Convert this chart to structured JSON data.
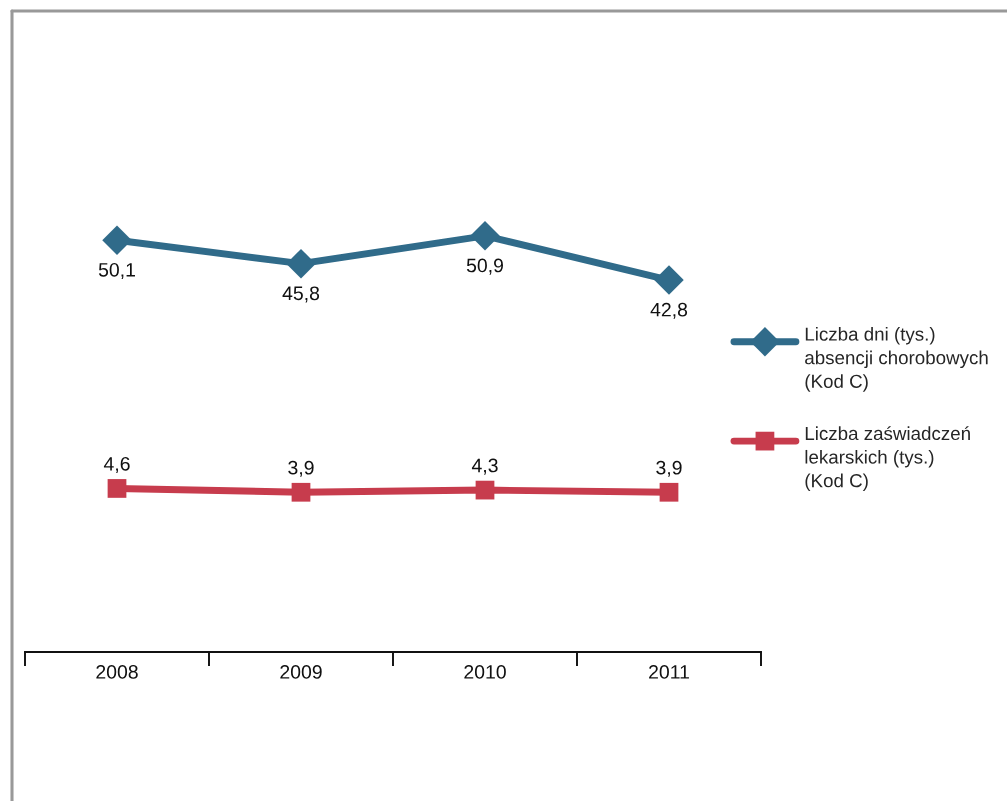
{
  "chart_data": {
    "type": "line",
    "categories": [
      "2008",
      "2009",
      "2010",
      "2011"
    ],
    "series": [
      {
        "name": "Liczba dni (tys.)\nabsencji chorobowych\n(Kod C)",
        "color": "#306b8a",
        "marker": "diamond",
        "values": [
          50.1,
          45.8,
          50.9,
          42.8
        ],
        "value_labels": [
          "50,1",
          "45,8",
          "50,9",
          "42,8"
        ]
      },
      {
        "name": "Liczba zaświadczeń\nlekarskich (tys.)\n(Kod C)",
        "color": "#c73c4d",
        "marker": "square",
        "values": [
          4.6,
          3.9,
          4.3,
          3.9
        ],
        "value_labels": [
          "4,6",
          "3,9",
          "4,3",
          "3,9"
        ]
      }
    ],
    "legend": "right",
    "tick_labels": "x"
  }
}
